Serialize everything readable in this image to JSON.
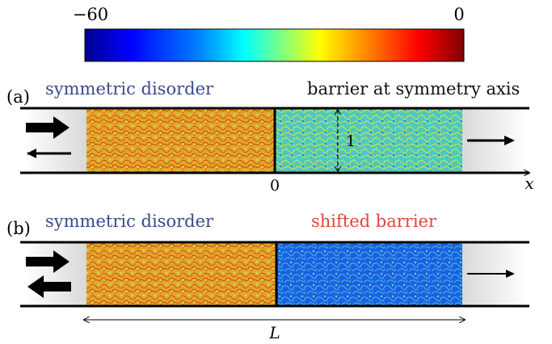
{
  "colorbar": {
    "min_label": "−60",
    "max_label": "0",
    "stops": [
      "#00008f",
      "#0000ff",
      "#0080ff",
      "#00ffff",
      "#80ff80",
      "#ffff00",
      "#ff8000",
      "#ff0000",
      "#800000"
    ]
  },
  "panel_a": {
    "letter": "(a)",
    "left_label": "symmetric disorder",
    "right_label": "barrier at symmetry axis",
    "width_label": "1",
    "origin_label": "0",
    "axis_label": "x",
    "left_color": "#e8a020",
    "right_color": "#5cc8c8"
  },
  "panel_b": {
    "letter": "(b)",
    "left_label": "symmetric disorder",
    "right_label": "shifted barrier",
    "length_label": "L",
    "left_color": "#e8a020",
    "right_color": "#2f6fe0"
  },
  "colors": {
    "left_text": "#3a4a8c",
    "shifted_text": "#e0473a",
    "dark_text": "#111111"
  }
}
